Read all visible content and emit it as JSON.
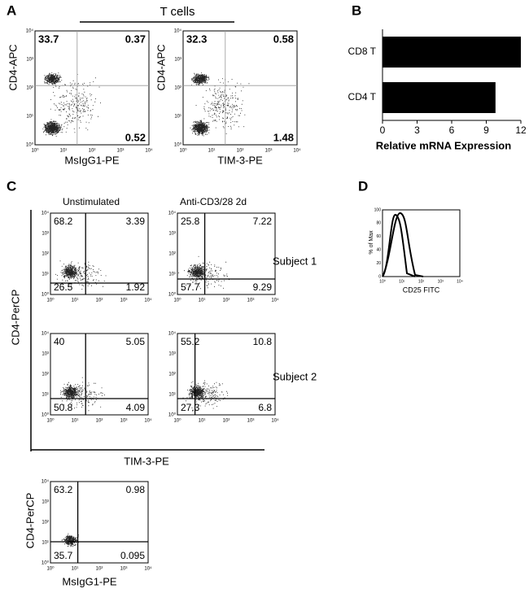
{
  "panel_labels": [
    "A",
    "B",
    "C",
    "D"
  ],
  "log_ticks": [
    "10⁰",
    "10¹",
    "10²",
    "10³",
    "10⁴"
  ],
  "panel_a": {
    "header": "T cells",
    "plots": [
      {
        "y_label": "CD4-APC",
        "x_label": "MsIgG1-PE",
        "quadrants": {
          "upper_left": "33.7",
          "upper_right": "0.37",
          "lower_right": "0.52"
        }
      },
      {
        "y_label": "CD4-APC",
        "x_label": "TIM-3-PE",
        "quadrants": {
          "upper_left": "32.3",
          "upper_right": "0.58",
          "lower_right": "1.48"
        }
      }
    ]
  },
  "chart_data": {
    "type": "bar",
    "orientation": "horizontal",
    "categories": [
      "CD8 T",
      "CD4 T"
    ],
    "values": [
      12,
      9.8
    ],
    "color": "#000000",
    "xlim": [
      0,
      12
    ],
    "xticks": [
      0,
      3,
      6,
      9,
      12
    ],
    "x_label": "Relative mRNA Expression"
  },
  "panel_c": {
    "columns": [
      "Unstimulated",
      "Anti-CD3/28 2d"
    ],
    "rows": [
      "Subject 1",
      "Subject 2"
    ],
    "y_label": "CD4-PerCP",
    "x_label": "TIM-3-PE",
    "plots": [
      {
        "quadrants": {
          "upper_left": "68.2",
          "upper_right": "3.39",
          "lower_left": "26.5",
          "lower_right": "1.92"
        }
      },
      {
        "quadrants": {
          "upper_left": "25.8",
          "upper_right": "7.22",
          "lower_left": "57.7",
          "lower_right": "9.29"
        }
      },
      {
        "quadrants": {
          "upper_left": "40",
          "upper_right": "5.05",
          "lower_left": "50.8",
          "lower_right": "4.09"
        }
      },
      {
        "quadrants": {
          "upper_left": "55.2",
          "upper_right": "10.8",
          "lower_left": "27.3",
          "lower_right": "6.8"
        }
      }
    ],
    "control": {
      "y_label": "CD4-PerCP",
      "x_label": "MsIgG1-PE",
      "quadrants": {
        "upper_left": "63.2",
        "upper_right": "0.98",
        "lower_left": "35.7",
        "lower_right": "0.095"
      }
    }
  },
  "panel_d": {
    "y_label": "% of Max",
    "x_label": "CD25 FITC",
    "yticks": [
      0,
      20,
      40,
      60,
      80,
      100
    ]
  }
}
